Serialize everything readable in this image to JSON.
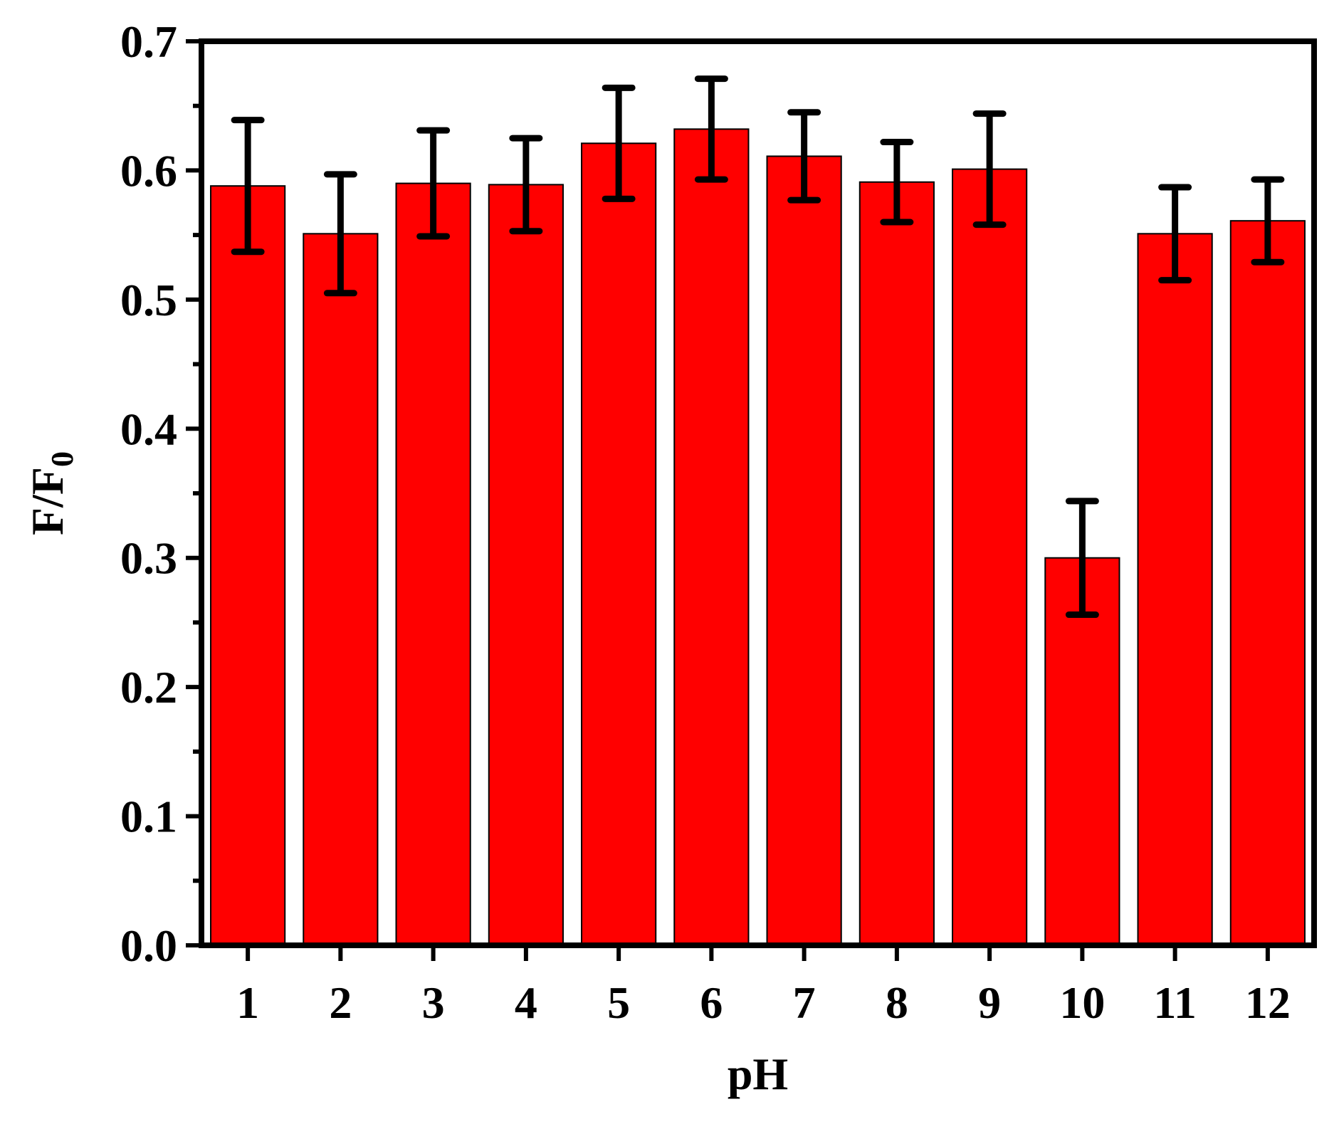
{
  "chart_data": {
    "type": "bar",
    "title": "",
    "xlabel": "pH",
    "ylabel": {
      "main": "F/F",
      "subscript": "0"
    },
    "categories": [
      "1",
      "2",
      "3",
      "4",
      "5",
      "6",
      "7",
      "8",
      "9",
      "10",
      "11",
      "12"
    ],
    "values": [
      0.588,
      0.551,
      0.59,
      0.589,
      0.621,
      0.632,
      0.611,
      0.591,
      0.601,
      0.3,
      0.551,
      0.561
    ],
    "error": [
      0.051,
      0.046,
      0.041,
      0.036,
      0.043,
      0.039,
      0.034,
      0.031,
      0.043,
      0.044,
      0.036,
      0.032
    ],
    "ylim": [
      0.0,
      0.7
    ],
    "yticks": [
      "0.0",
      "0.1",
      "0.2",
      "0.3",
      "0.4",
      "0.5",
      "0.6",
      "0.7"
    ],
    "grid": false,
    "bar_color": "#ff0000",
    "error_color": "#000000"
  }
}
